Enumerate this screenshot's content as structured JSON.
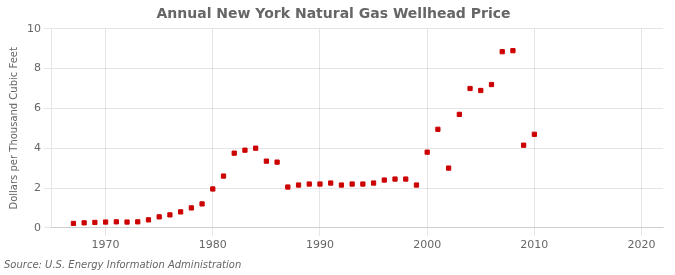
{
  "chart_data": {
    "type": "scatter",
    "title": "Annual New York Natural Gas Wellhead Price",
    "ylabel": "Dollars per Thousand Cubic Feet",
    "annotations": [
      "Source: U.S. Energy Information Administration"
    ],
    "x": [
      1967,
      1968,
      1969,
      1970,
      1971,
      1972,
      1973,
      1974,
      1975,
      1976,
      1977,
      1978,
      1979,
      1980,
      1981,
      1982,
      1983,
      1984,
      1985,
      1986,
      1987,
      1988,
      1989,
      1990,
      1991,
      1992,
      1993,
      1994,
      1995,
      1996,
      1997,
      1998,
      1999,
      2000,
      2001,
      2002,
      2003,
      2004,
      2005,
      2006,
      2007,
      2008,
      2009,
      2010
    ],
    "values": [
      0.22,
      0.25,
      0.27,
      0.29,
      0.3,
      0.29,
      0.3,
      0.4,
      0.55,
      0.65,
      0.8,
      1.0,
      1.2,
      1.95,
      2.6,
      3.75,
      3.9,
      4.0,
      3.35,
      3.3,
      2.05,
      2.15,
      2.2,
      2.2,
      2.25,
      2.15,
      2.2,
      2.2,
      2.25,
      2.4,
      2.45,
      2.45,
      2.15,
      3.8,
      4.95,
      3.0,
      5.7,
      7.0,
      6.9,
      7.2,
      8.85,
      8.9,
      4.15,
      4.7
    ],
    "color": "#cc0000",
    "marker": "square",
    "xlim": [
      1965,
      2022
    ],
    "ylim": [
      0,
      10
    ],
    "xticks": [
      1970,
      1980,
      1990,
      2000,
      2010,
      2020
    ],
    "yticks": [
      0,
      2,
      4,
      6,
      8,
      10
    ],
    "grid": true
  }
}
